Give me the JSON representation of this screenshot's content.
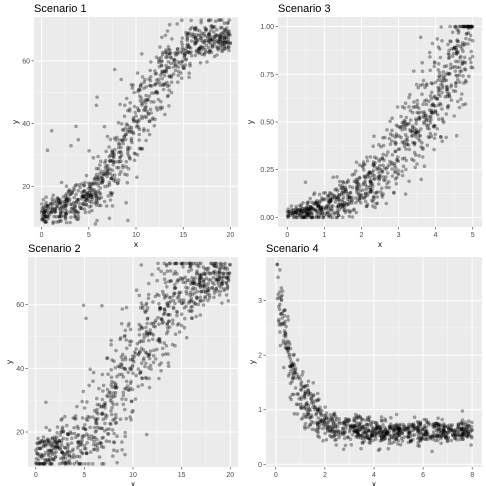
{
  "chart_data": [
    {
      "type": "scatter",
      "title": "Scenario 1",
      "xlabel": "x",
      "ylabel": "y",
      "xlim": [
        -0.8,
        20.8
      ],
      "ylim": [
        7,
        74
      ],
      "xticks": [
        0,
        5,
        10,
        15,
        20
      ],
      "xtick_labels": [
        "0",
        "5",
        "10",
        "15",
        "20"
      ],
      "yticks": [
        20,
        40,
        60
      ],
      "ytick_labels": [
        "20",
        "40",
        "60"
      ],
      "grid": true,
      "background": "#ebebeb",
      "point_color": "#000000",
      "point_opacity": 0.35,
      "n_points": 900,
      "trend": "logistic increase from about 12 at x=0 to about 68 at x=20, midpoint near x=10",
      "x_range": [
        0,
        20
      ],
      "y_range": [
        8,
        73
      ]
    },
    {
      "type": "scatter",
      "title": "Scenario 3",
      "xlabel": "x",
      "ylabel": "y",
      "xlim": [
        -0.25,
        5.25
      ],
      "ylim": [
        -0.05,
        1.05
      ],
      "xticks": [
        0,
        1,
        2,
        3,
        4,
        5
      ],
      "xtick_labels": [
        "0",
        "1",
        "2",
        "3",
        "4",
        "5"
      ],
      "yticks": [
        0,
        0.25,
        0.5,
        0.75,
        1
      ],
      "ytick_labels": [
        "0.00",
        "0.25",
        "0.50",
        "0.75",
        "1.00"
      ],
      "grid": true,
      "background": "#ebebeb",
      "point_color": "#000000",
      "point_opacity": 0.35,
      "n_points": 900,
      "trend": "convex increase from about 0.02 at x=0 to about 0.9 at x=5",
      "x_range": [
        0,
        5
      ],
      "y_range": [
        0,
        1
      ]
    },
    {
      "type": "scatter",
      "title": "Scenario 2",
      "xlabel": "x",
      "ylabel": "y",
      "xlim": [
        -0.8,
        20.8
      ],
      "ylim": [
        9,
        75
      ],
      "xticks": [
        0,
        5,
        10,
        15,
        20
      ],
      "xtick_labels": [
        "0",
        "5",
        "10",
        "15",
        "20"
      ],
      "yticks": [
        20,
        40,
        60
      ],
      "ytick_labels": [
        "20",
        "40",
        "60"
      ],
      "grid": true,
      "background": "#ebebeb",
      "point_color": "#000000",
      "point_opacity": 0.35,
      "n_points": 900,
      "trend": "logistic increase from about 13 at x=0 to about 68 at x=20, wider spread at mid x",
      "x_range": [
        0,
        20
      ],
      "y_range": [
        10,
        73
      ]
    },
    {
      "type": "scatter",
      "title": "Scenario 4",
      "xlabel": "x",
      "ylabel": "y",
      "xlim": [
        -0.4,
        8.4
      ],
      "ylim": [
        -0.05,
        3.8
      ],
      "xticks": [
        0,
        2,
        4,
        6,
        8
      ],
      "xtick_labels": [
        "0",
        "2",
        "4",
        "6",
        "8"
      ],
      "yticks": [
        0,
        1,
        2,
        3
      ],
      "ytick_labels": [
        "0",
        "1",
        "2",
        "3"
      ],
      "grid": true,
      "background": "#ebebeb",
      "point_color": "#000000",
      "point_opacity": 0.35,
      "n_points": 900,
      "trend": "rapid decay from about 3.4 near x=0 to about 0.6 for x above 6",
      "x_range": [
        0.05,
        8
      ],
      "y_range": [
        0.1,
        3.7
      ]
    }
  ]
}
